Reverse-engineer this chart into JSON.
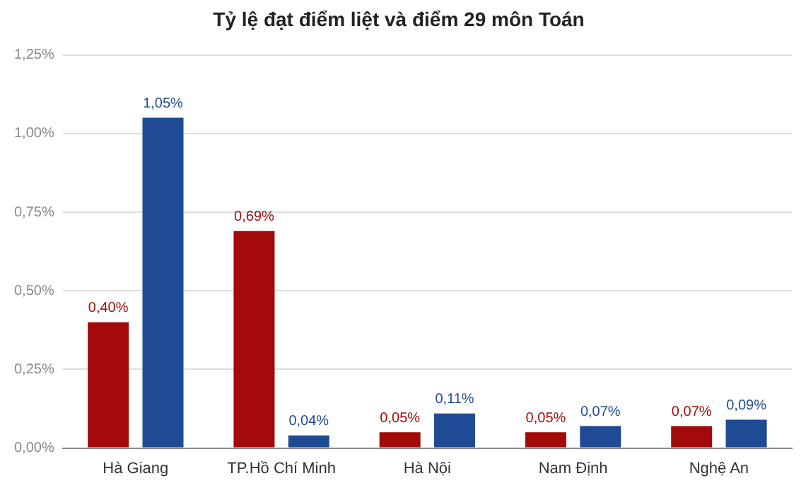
{
  "chart_data": {
    "type": "bar",
    "title": "Tỷ lệ đạt điểm liệt và điểm 29 môn Toán",
    "categories": [
      "Hà Giang",
      "TP.Hồ Chí Minh",
      "Hà Nội",
      "Nam Định",
      "Nghệ An"
    ],
    "series": [
      {
        "color": "#a30b0b",
        "values": [
          0.4,
          0.69,
          0.05,
          0.05,
          0.07
        ],
        "value_labels": [
          "0,40%",
          "0,69%",
          "0,05%",
          "0,05%",
          "0,07%"
        ]
      },
      {
        "color": "#1f4a94",
        "values": [
          1.05,
          0.04,
          0.11,
          0.07,
          0.09
        ],
        "value_labels": [
          "1,05%",
          "0,04%",
          "0,11%",
          "0,07%",
          "0,09%"
        ]
      }
    ],
    "ylim": [
      0,
      1.25
    ],
    "yticks": [
      {
        "value": 0,
        "label": "0,00%"
      },
      {
        "value": 0.25,
        "label": "0,25%"
      },
      {
        "value": 0.5,
        "label": "0,50%"
      },
      {
        "value": 0.75,
        "label": "0,75%"
      },
      {
        "value": 1,
        "label": "1,00%"
      },
      {
        "value": 1.25,
        "label": "1,25%"
      }
    ],
    "grid": "y",
    "legend": false
  }
}
